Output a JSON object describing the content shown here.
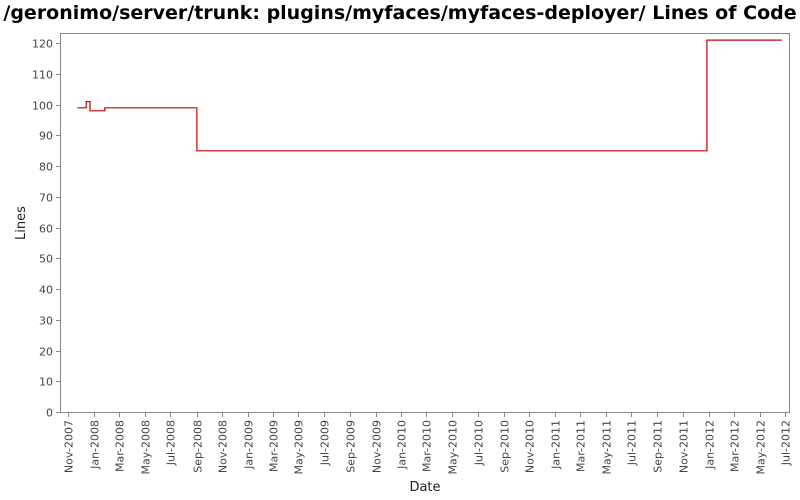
{
  "chart_data": {
    "type": "line",
    "title": "/geronimo/server/trunk: plugins/myfaces/myfaces-deployer/ Lines of Code",
    "xlabel": "Date",
    "ylabel": "Lines",
    "ylim": [
      0,
      123
    ],
    "xlim": [
      "2007-10-15",
      "2012-07-10"
    ],
    "yticks": [
      0,
      10,
      20,
      30,
      40,
      50,
      60,
      70,
      80,
      90,
      100,
      110,
      120
    ],
    "xticks": [
      {
        "date": "2007-11-01",
        "label": "Nov-2007"
      },
      {
        "date": "2008-01-01",
        "label": "Jan-2008"
      },
      {
        "date": "2008-03-01",
        "label": "Mar-2008"
      },
      {
        "date": "2008-05-01",
        "label": "May-2008"
      },
      {
        "date": "2008-07-01",
        "label": "Jul-2008"
      },
      {
        "date": "2008-09-01",
        "label": "Sep-2008"
      },
      {
        "date": "2008-11-01",
        "label": "Nov-2008"
      },
      {
        "date": "2009-01-01",
        "label": "Jan-2009"
      },
      {
        "date": "2009-03-01",
        "label": "Mar-2009"
      },
      {
        "date": "2009-05-01",
        "label": "May-2009"
      },
      {
        "date": "2009-07-01",
        "label": "Jul-2009"
      },
      {
        "date": "2009-09-01",
        "label": "Sep-2009"
      },
      {
        "date": "2009-11-01",
        "label": "Nov-2009"
      },
      {
        "date": "2010-01-01",
        "label": "Jan-2010"
      },
      {
        "date": "2010-03-01",
        "label": "Mar-2010"
      },
      {
        "date": "2010-05-01",
        "label": "May-2010"
      },
      {
        "date": "2010-07-01",
        "label": "Jul-2010"
      },
      {
        "date": "2010-09-01",
        "label": "Sep-2010"
      },
      {
        "date": "2010-11-01",
        "label": "Nov-2010"
      },
      {
        "date": "2011-01-01",
        "label": "Jan-2011"
      },
      {
        "date": "2011-03-01",
        "label": "Mar-2011"
      },
      {
        "date": "2011-05-01",
        "label": "May-2011"
      },
      {
        "date": "2011-07-01",
        "label": "Jul-2011"
      },
      {
        "date": "2011-09-01",
        "label": "Sep-2011"
      },
      {
        "date": "2011-11-01",
        "label": "Nov-2011"
      },
      {
        "date": "2012-01-01",
        "label": "Jan-2012"
      },
      {
        "date": "2012-03-01",
        "label": "Mar-2012"
      },
      {
        "date": "2012-05-01",
        "label": "May-2012"
      },
      {
        "date": "2012-07-01",
        "label": "Jul-2012"
      }
    ],
    "series": [
      {
        "color": "#cc0000",
        "step": true,
        "points": [
          {
            "x": "2007-11-23",
            "y": 99
          },
          {
            "x": "2007-12-14",
            "y": 101
          },
          {
            "x": "2007-12-23",
            "y": 98
          },
          {
            "x": "2008-01-27",
            "y": 99
          },
          {
            "x": "2008-09-02",
            "y": 85
          },
          {
            "x": "2011-12-28",
            "y": 121
          },
          {
            "x": "2012-06-23",
            "y": 121
          }
        ]
      }
    ],
    "grid": false,
    "legend": "none"
  }
}
